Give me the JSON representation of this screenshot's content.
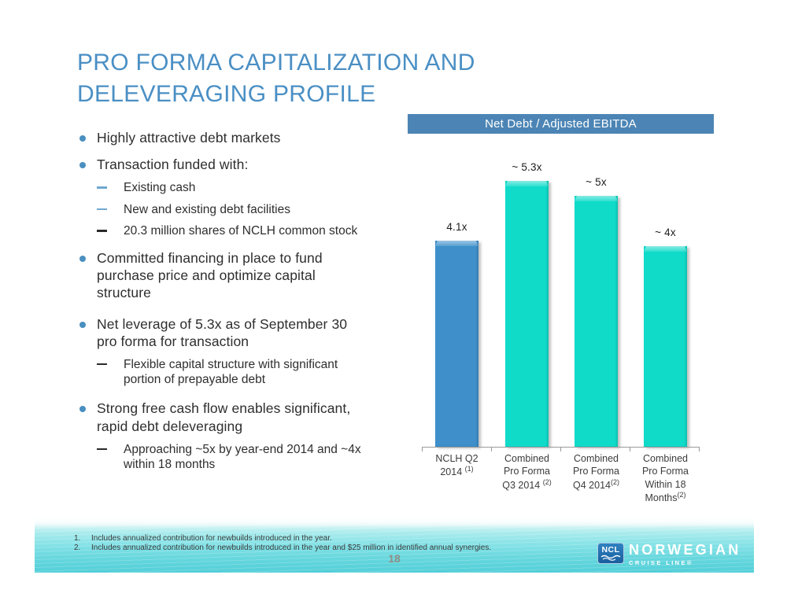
{
  "slide": {
    "title": "PRO FORMA CAPITALIZATION AND\nDELEVERAGING PROFILE"
  },
  "content": {
    "bullet_1": "Highly attractive debt markets",
    "bullet_2": "Transaction funded with:",
    "bullet_2_sub_1": "Existing cash",
    "bullet_2_sub_2": "New and existing debt facilities",
    "bullet_2_sub_3": "20.3 million shares of NCLH common stock",
    "bullet_3": "Committed financing in place to fund\npurchase price and optimize capital\nstructure",
    "bullet_4": "Net leverage of 5.3x as of September 30\npro forma for transaction",
    "bullet_4_sub_1": "Flexible capital structure with significant\nportion of prepayable debt",
    "bullet_5": "Strong free cash flow enables significant,\nrapid debt deleveraging",
    "bullet_5_sub_1": "Approaching ~5x by year-end 2014 and ~4x\nwithin 18 months"
  },
  "chart_data": {
    "type": "bar",
    "title": "Net Debt / Adjusted EBITDA",
    "categories": [
      {
        "lines": "NCLH Q2\n2014 ",
        "sup": "(1)"
      },
      {
        "lines": "Combined\nPro Forma\nQ3 2014 ",
        "sup": "(2)"
      },
      {
        "lines": "Combined\nPro Forma\nQ4 2014",
        "sup": "(2)"
      },
      {
        "lines": "Combined\nPro Forma\nWithin 18\nMonths",
        "sup": "(2)"
      }
    ],
    "values": [
      4.1,
      5.3,
      5.0,
      4.0
    ],
    "value_labels": [
      "4.1x",
      "~ 5.3x",
      "~ 5x",
      "~ 4x"
    ],
    "bar_colors": [
      "#3E8FCA",
      "#10DBC9",
      "#10DBC9",
      "#10DBC9"
    ],
    "header_bg": "#4C85B5",
    "xlabel": "",
    "ylabel": "",
    "ylim": [
      0,
      6
    ],
    "grid": "off",
    "legend": "none"
  },
  "footer": {
    "footnotes": [
      {
        "num": "1.",
        "text": "Includes annualized contribution for newbuilds introduced in the year."
      },
      {
        "num": "2.",
        "text": "Includes annualized contribution for newbuilds introduced in the year and $25 million in identified annual synergies."
      }
    ],
    "page_number": "18",
    "logo": {
      "badge": "NCL",
      "name": "NORWEGIAN",
      "tagline": "CRUISE LINE®"
    }
  },
  "colors": {
    "title_blue": "#4A8FC4",
    "chart_header_blue": "#4C85B5",
    "bar_blue": "#3E8FCA",
    "bar_teal": "#10DBC9",
    "bullet_dot_blue": "#4A8FC0",
    "dash_blue": "#6FA8D0",
    "dash_dark": "#2B2B2B",
    "water_teal": "#54CFD8"
  }
}
